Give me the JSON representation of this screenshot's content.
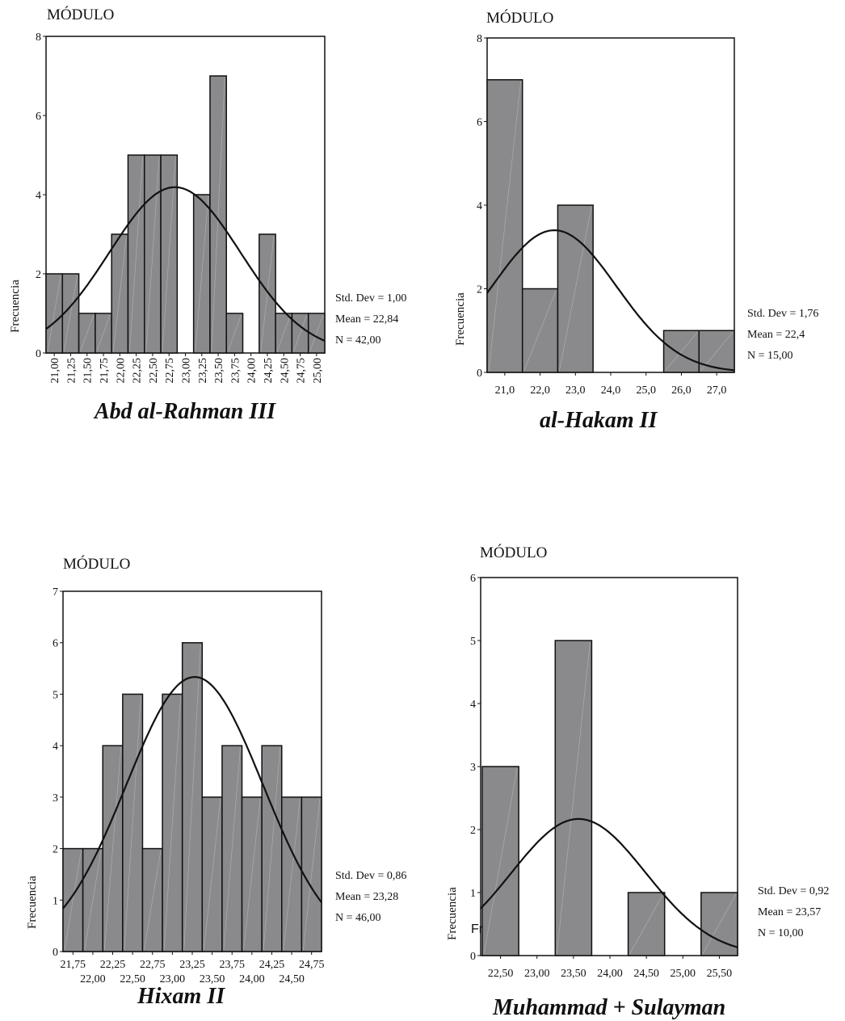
{
  "chart_data": [
    {
      "type": "bar",
      "variable_title": "MÓDULO",
      "ylabel": "Frecuencia",
      "caption": "Abd al-Rahman III",
      "ylim": [
        0,
        8
      ],
      "y_ticks": [
        "0",
        "2",
        "4",
        "6",
        "8"
      ],
      "categories": [
        "21,00",
        "21,25",
        "21,50",
        "21,75",
        "22,00",
        "22,25",
        "22,50",
        "22,75",
        "23,00",
        "23,25",
        "23,50",
        "23,75",
        "24,00",
        "24,25",
        "24,50",
        "24,75",
        "25,00"
      ],
      "x_tick_labels": [
        "21,00",
        "21,25",
        "21,50",
        "21,75",
        "22,00",
        "22,25",
        "22,50",
        "22,75",
        "23,00",
        "23,25",
        "23,50",
        "23,75",
        "24,00",
        "24,25",
        "24,50",
        "24,75",
        "25,00"
      ],
      "values": [
        2,
        2,
        1,
        1,
        3,
        5,
        5,
        5,
        0,
        4,
        7,
        1,
        0,
        3,
        1,
        1,
        1
      ],
      "normal_curve": {
        "mean": 22.84,
        "std": 1.0,
        "n": 42,
        "bin_width": 0.25
      },
      "stats": {
        "std_dev": "Std. Dev = 1,00",
        "mean": "Mean = 22,84",
        "n": "N = 42,00"
      },
      "grid": false
    },
    {
      "type": "bar",
      "variable_title": "MÓDULO",
      "ylabel": "Frecuencia",
      "caption": "al-Hakam II",
      "ylim": [
        0,
        8
      ],
      "y_ticks": [
        "0",
        "2",
        "4",
        "6",
        "8"
      ],
      "categories": [
        "21,0",
        "22,0",
        "23,0",
        "24,0",
        "25,0",
        "26,0",
        "27,0"
      ],
      "x_tick_labels": [
        "21,0",
        "22,0",
        "23,0",
        "24,0",
        "25,0",
        "26,0",
        "27,0"
      ],
      "values": [
        7,
        2,
        4,
        0,
        0,
        1,
        1
      ],
      "normal_curve": {
        "mean": 22.4,
        "std": 1.76,
        "n": 15,
        "bin_width": 1.0
      },
      "stats": {
        "std_dev": "Std. Dev = 1,76",
        "mean": "Mean = 22,4",
        "n": "N = 15,00"
      },
      "grid": false
    },
    {
      "type": "bar",
      "variable_title": "MÓDULO",
      "ylabel": "Frecuencia",
      "caption": "Hixam II",
      "ylim": [
        0,
        7
      ],
      "y_ticks": [
        "0",
        "1",
        "2",
        "3",
        "4",
        "5",
        "6",
        "7"
      ],
      "categories": [
        "21,75",
        "22,00",
        "22,25",
        "22,50",
        "22,75",
        "23,00",
        "23,25",
        "23,50",
        "23,75",
        "24,00",
        "24,25",
        "24,50",
        "24,75"
      ],
      "x_tick_labels_row1": [
        "21,75",
        "22,25",
        "22,75",
        "23,25",
        "23,75",
        "24,25",
        "24,75"
      ],
      "x_tick_labels_row2": [
        "22,00",
        "22,50",
        "23,00",
        "23,50",
        "24,00",
        "24,50"
      ],
      "values": [
        2,
        2,
        4,
        5,
        2,
        5,
        6,
        3,
        4,
        3,
        4,
        3,
        3
      ],
      "normal_curve": {
        "mean": 23.28,
        "std": 0.86,
        "n": 46,
        "bin_width": 0.25
      },
      "stats": {
        "std_dev": "Std. Dev = 0,86",
        "mean": "Mean = 23,28",
        "n": "N = 46,00"
      },
      "grid": false
    },
    {
      "type": "bar",
      "variable_title": "MÓDULO",
      "ylabel": "Frecuencia",
      "caption": "Muhammad + Sulayman",
      "ylim": [
        0,
        6
      ],
      "y_ticks": [
        "0",
        "1",
        "2",
        "3",
        "4",
        "5",
        "6"
      ],
      "categories": [
        "22,50",
        "23,00",
        "23,50",
        "24,00",
        "24,50",
        "25,00",
        "25,50"
      ],
      "x_tick_labels": [
        "22,50",
        "23,00",
        "23,50",
        "24,00",
        "24,50",
        "25,00",
        "25,50"
      ],
      "values": [
        3,
        0,
        5,
        0,
        1,
        0,
        1
      ],
      "normal_curve": {
        "mean": 23.57,
        "std": 0.92,
        "n": 10,
        "bin_width": 0.5
      },
      "stats": {
        "std_dev": "Std. Dev = 0,92",
        "mean": "Mean = 23,57",
        "n": "N = 10,00"
      },
      "stray_text": "Fr",
      "grid": false
    }
  ]
}
